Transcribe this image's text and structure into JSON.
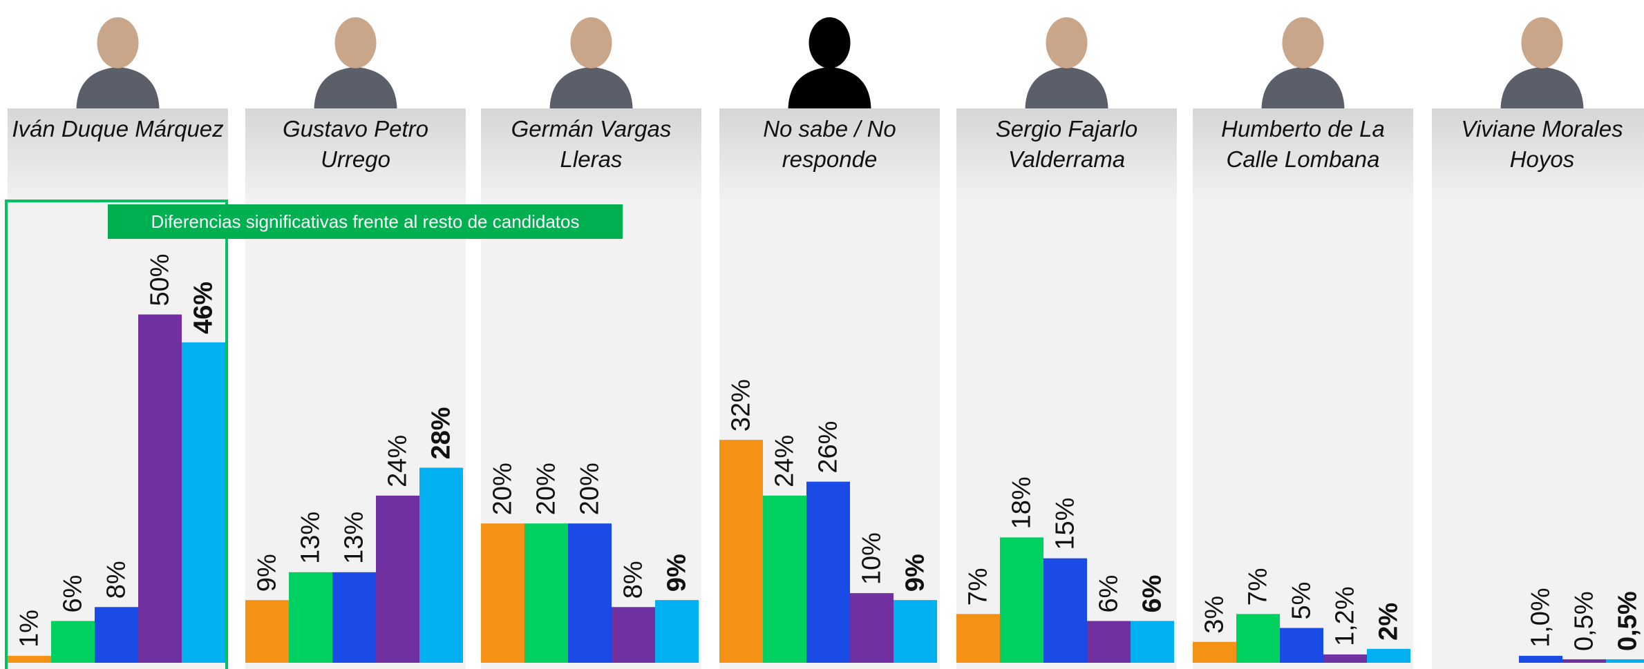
{
  "chart_data": {
    "type": "bar",
    "categories": [
      "Iván Duque Márquez",
      "Gustavo Petro Urrego",
      "Germán Vargas Lleras",
      "No sabe / No responde",
      "Sergio Fajarlo Valderrama",
      "Humberto de La Calle Lombana",
      "Viviane Morales Hoyos"
    ],
    "annotation": "Diferencias significativas frente al resto de candidatos",
    "series": [
      {
        "color": "#f39214",
        "values": [
          1,
          9,
          20,
          32,
          7,
          3,
          null
        ],
        "value_labels": [
          "1%",
          "9%",
          "20%",
          "32%",
          "7%",
          "3%",
          null
        ]
      },
      {
        "color": "#00d060",
        "values": [
          6,
          13,
          20,
          24,
          18,
          7,
          null
        ],
        "value_labels": [
          "6%",
          "13%",
          "20%",
          "24%",
          "18%",
          "7%",
          null
        ]
      },
      {
        "color": "#1a4be6",
        "values": [
          8,
          13,
          20,
          26,
          15,
          5,
          1.0
        ],
        "value_labels": [
          "8%",
          "13%",
          "20%",
          "26%",
          "15%",
          "5%",
          "1,0%"
        ]
      },
      {
        "color": "#7030a0",
        "values": [
          50,
          24,
          8,
          10,
          6,
          1.2,
          0.5
        ],
        "value_labels": [
          "50%",
          "24%",
          "8%",
          "10%",
          "6%",
          "1,2%",
          "0,5%"
        ]
      },
      {
        "color": "#00b0f0",
        "values": [
          46,
          28,
          9,
          9,
          6,
          2,
          0.5
        ],
        "value_labels": [
          "46%",
          "28%",
          "9%",
          "9%",
          "6%",
          "2%",
          "0,5%"
        ]
      }
    ]
  }
}
